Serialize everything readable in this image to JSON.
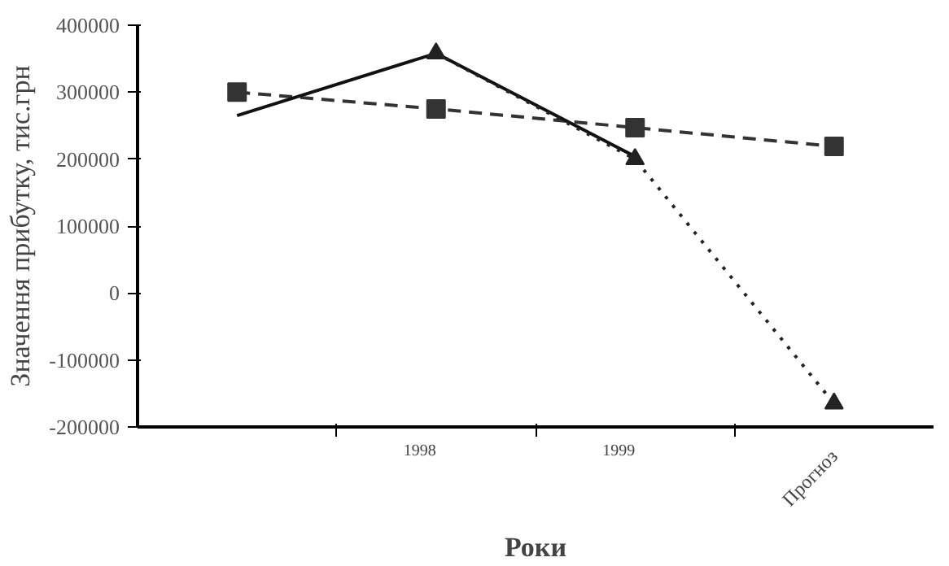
{
  "chart_data": {
    "type": "line",
    "xlabel": "Роки",
    "ylabel": "Значення прибутку, тис.грн",
    "categories": [
      null,
      "1998",
      "1999",
      "Прогноз"
    ],
    "ylim": [
      -200000,
      400000
    ],
    "yticks": [
      -200000,
      -100000,
      0,
      100000,
      200000,
      300000,
      400000
    ],
    "grid": false,
    "series": [
      {
        "color": "#333333",
        "values": [
          300000,
          275000,
          247000,
          219000
        ],
        "marker": "square",
        "line_style": "dashed"
      },
      {
        "color": "#111111",
        "values": [
          265000,
          358000,
          204000,
          null
        ],
        "marker": "none",
        "line_style": "solid"
      },
      {
        "color": "#222222",
        "values": [
          null,
          358000,
          200000,
          -165000
        ],
        "marker": "triangle",
        "line_style": "dotted"
      }
    ]
  }
}
